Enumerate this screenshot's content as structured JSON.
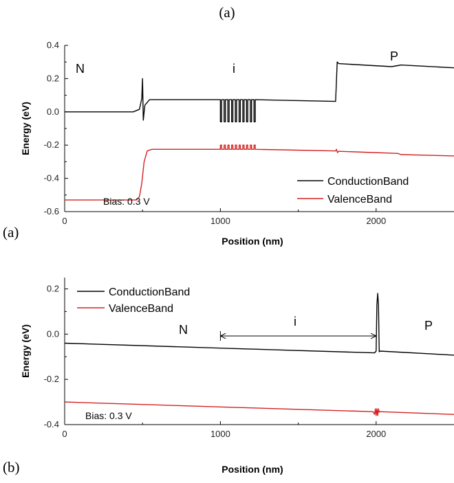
{
  "caption_top": "(a)",
  "chart_data": [
    {
      "panel_label": "(a)",
      "type": "line",
      "xlabel": "Position (nm)",
      "ylabel": "Energy (eV)",
      "xlim": [
        0,
        2500
      ],
      "ylim": [
        -0.6,
        0.4
      ],
      "xticks": [
        0,
        1000,
        2000
      ],
      "yticks": [
        -0.6,
        -0.4,
        -0.2,
        0.0,
        0.2,
        0.4
      ],
      "ytick_labels": [
        "-0.6",
        "-0.4",
        "-0.2",
        "0.0",
        "0.2",
        "0.4"
      ],
      "grid": false,
      "legend_position": "bottom-right",
      "annotations": {
        "n": "N",
        "i": "i",
        "p": "P",
        "bias": "Bias: 0.3 V"
      },
      "series": [
        {
          "name": "ConductionBand",
          "color": "#000000",
          "x": [
            0,
            440,
            480,
            495,
            500,
            505,
            515,
            545,
            1000,
            1000,
            1008,
            1008,
            1024,
            1024,
            1032,
            1032,
            1048,
            1048,
            1056,
            1056,
            1072,
            1072,
            1080,
            1080,
            1096,
            1096,
            1104,
            1104,
            1120,
            1120,
            1128,
            1128,
            1144,
            1144,
            1152,
            1152,
            1168,
            1168,
            1176,
            1176,
            1192,
            1192,
            1200,
            1200,
            1216,
            1216,
            1224,
            1224,
            1740,
            1750,
            1760,
            2100,
            2150,
            2160,
            2500
          ],
          "y": [
            0.0,
            0.0,
            0.015,
            0.08,
            0.2,
            -0.05,
            0.04,
            0.073,
            0.073,
            -0.06,
            -0.06,
            0.073,
            0.073,
            -0.06,
            -0.06,
            0.073,
            0.073,
            -0.06,
            -0.06,
            0.073,
            0.073,
            -0.06,
            -0.06,
            0.073,
            0.073,
            -0.06,
            -0.06,
            0.073,
            0.073,
            -0.06,
            -0.06,
            0.073,
            0.073,
            -0.06,
            -0.06,
            0.073,
            0.073,
            -0.06,
            -0.06,
            0.073,
            0.073,
            -0.06,
            -0.06,
            0.073,
            0.073,
            -0.06,
            -0.06,
            0.073,
            0.063,
            0.3,
            0.29,
            0.272,
            0.28,
            0.282,
            0.265
          ]
        },
        {
          "name": "ValenceBand",
          "color": "#d42020",
          "x": [
            0,
            460,
            480,
            495,
            510,
            530,
            560,
            1000,
            1000,
            1008,
            1008,
            1024,
            1024,
            1032,
            1032,
            1048,
            1048,
            1056,
            1056,
            1072,
            1072,
            1080,
            1080,
            1096,
            1096,
            1104,
            1104,
            1120,
            1120,
            1128,
            1128,
            1144,
            1144,
            1152,
            1152,
            1168,
            1168,
            1176,
            1176,
            1192,
            1192,
            1200,
            1200,
            1216,
            1216,
            1224,
            1224,
            1740,
            1745,
            1752,
            1760,
            2140,
            2160,
            2500
          ],
          "y": [
            -0.53,
            -0.53,
            -0.51,
            -0.43,
            -0.3,
            -0.235,
            -0.225,
            -0.225,
            -0.2,
            -0.2,
            -0.225,
            -0.225,
            -0.2,
            -0.2,
            -0.225,
            -0.225,
            -0.2,
            -0.2,
            -0.225,
            -0.225,
            -0.2,
            -0.2,
            -0.225,
            -0.225,
            -0.2,
            -0.2,
            -0.225,
            -0.225,
            -0.2,
            -0.2,
            -0.225,
            -0.225,
            -0.2,
            -0.2,
            -0.225,
            -0.225,
            -0.2,
            -0.2,
            -0.225,
            -0.225,
            -0.2,
            -0.2,
            -0.225,
            -0.225,
            -0.2,
            -0.2,
            -0.225,
            -0.235,
            -0.225,
            -0.245,
            -0.237,
            -0.25,
            -0.257,
            -0.265
          ]
        }
      ]
    },
    {
      "panel_label": "(b)",
      "type": "line",
      "xlabel": "Position (nm)",
      "ylabel": "Energy (eV)",
      "xlim": [
        0,
        2500
      ],
      "ylim": [
        -0.4,
        0.25
      ],
      "xticks": [
        0,
        1000,
        2000
      ],
      "yticks": [
        -0.4,
        -0.2,
        0.0,
        0.2
      ],
      "ytick_labels": [
        "-0.4",
        "-0.2",
        "0.0",
        "0.2"
      ],
      "grid": false,
      "legend_position": "top-left",
      "annotations": {
        "n": "N",
        "i": "i",
        "p": "P",
        "bias": "Bias: 0.3 V",
        "arrow_from": 1000,
        "arrow_to": 2000
      },
      "series": [
        {
          "name": "ConductionBand",
          "color": "#000000",
          "x": [
            0,
            1000,
            1990,
            2000,
            2005,
            2010,
            2015,
            2020,
            2025,
            2500
          ],
          "y": [
            -0.04,
            -0.062,
            -0.083,
            -0.075,
            0.13,
            0.18,
            0.13,
            -0.078,
            -0.075,
            -0.093
          ]
        },
        {
          "name": "ValenceBand",
          "color": "#d42020",
          "x": [
            0,
            1000,
            1980,
            1990,
            1995,
            2000,
            2005,
            2010,
            2015,
            2020,
            2025,
            2500
          ],
          "y": [
            -0.3,
            -0.322,
            -0.343,
            -0.355,
            -0.33,
            -0.36,
            -0.33,
            -0.36,
            -0.33,
            -0.345,
            -0.343,
            -0.355
          ]
        }
      ]
    }
  ]
}
